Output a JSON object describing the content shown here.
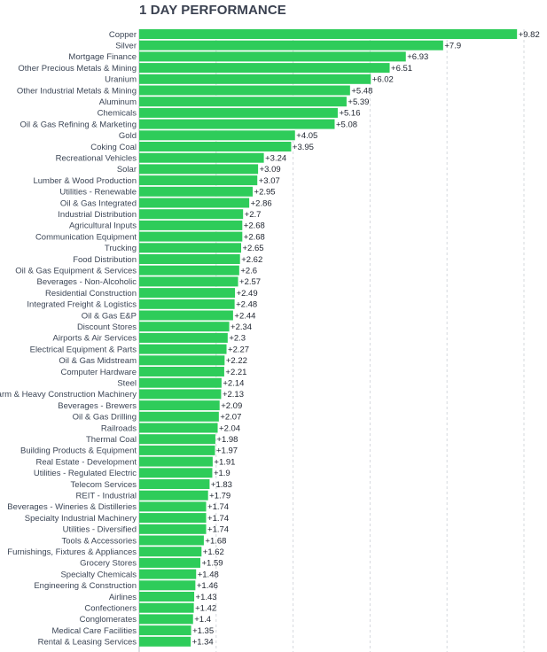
{
  "chart_data": {
    "type": "bar",
    "orientation": "horizontal",
    "title": "1 DAY PERFORMANCE",
    "xlabel": "",
    "ylabel": "",
    "xlim": [
      0,
      10
    ],
    "grid": true,
    "value_prefix": "+",
    "bar_color": "#2ecc5a",
    "categories": [
      "Copper",
      "Silver",
      "Mortgage Finance",
      "Other Precious Metals & Mining",
      "Uranium",
      "Other Industrial Metals & Mining",
      "Aluminum",
      "Chemicals",
      "Oil & Gas Refining & Marketing",
      "Gold",
      "Coking Coal",
      "Recreational Vehicles",
      "Solar",
      "Lumber & Wood Production",
      "Utilities - Renewable",
      "Oil & Gas Integrated",
      "Industrial Distribution",
      "Agricultural Inputs",
      "Communication Equipment",
      "Trucking",
      "Food Distribution",
      "Oil & Gas Equipment & Services",
      "Beverages - Non-Alcoholic",
      "Residential Construction",
      "Integrated Freight & Logistics",
      "Oil & Gas E&P",
      "Discount Stores",
      "Airports & Air Services",
      "Electrical Equipment & Parts",
      "Oil & Gas Midstream",
      "Computer Hardware",
      "Steel",
      "Farm & Heavy Construction Machinery",
      "Beverages - Brewers",
      "Oil & Gas Drilling",
      "Railroads",
      "Thermal Coal",
      "Building Products & Equipment",
      "Real Estate - Development",
      "Utilities - Regulated Electric",
      "Telecom Services",
      "REIT - Industrial",
      "Beverages - Wineries & Distilleries",
      "Specialty Industrial Machinery",
      "Utilities - Diversified",
      "Tools & Accessories",
      "Furnishings, Fixtures & Appliances",
      "Grocery Stores",
      "Specialty Chemicals",
      "Engineering & Construction",
      "Airlines",
      "Confectioners",
      "Conglomerates",
      "Medical Care Facilities",
      "Rental & Leasing Services"
    ],
    "values": [
      9.82,
      7.9,
      6.93,
      6.51,
      6.02,
      5.48,
      5.39,
      5.16,
      5.08,
      4.05,
      3.95,
      3.24,
      3.09,
      3.07,
      2.95,
      2.86,
      2.7,
      2.68,
      2.68,
      2.65,
      2.62,
      2.6,
      2.57,
      2.49,
      2.48,
      2.44,
      2.34,
      2.3,
      2.27,
      2.22,
      2.21,
      2.14,
      2.13,
      2.09,
      2.07,
      2.04,
      1.98,
      1.97,
      1.91,
      1.9,
      1.83,
      1.79,
      1.74,
      1.74,
      1.74,
      1.68,
      1.62,
      1.59,
      1.48,
      1.46,
      1.43,
      1.42,
      1.4,
      1.35,
      1.34
    ]
  }
}
